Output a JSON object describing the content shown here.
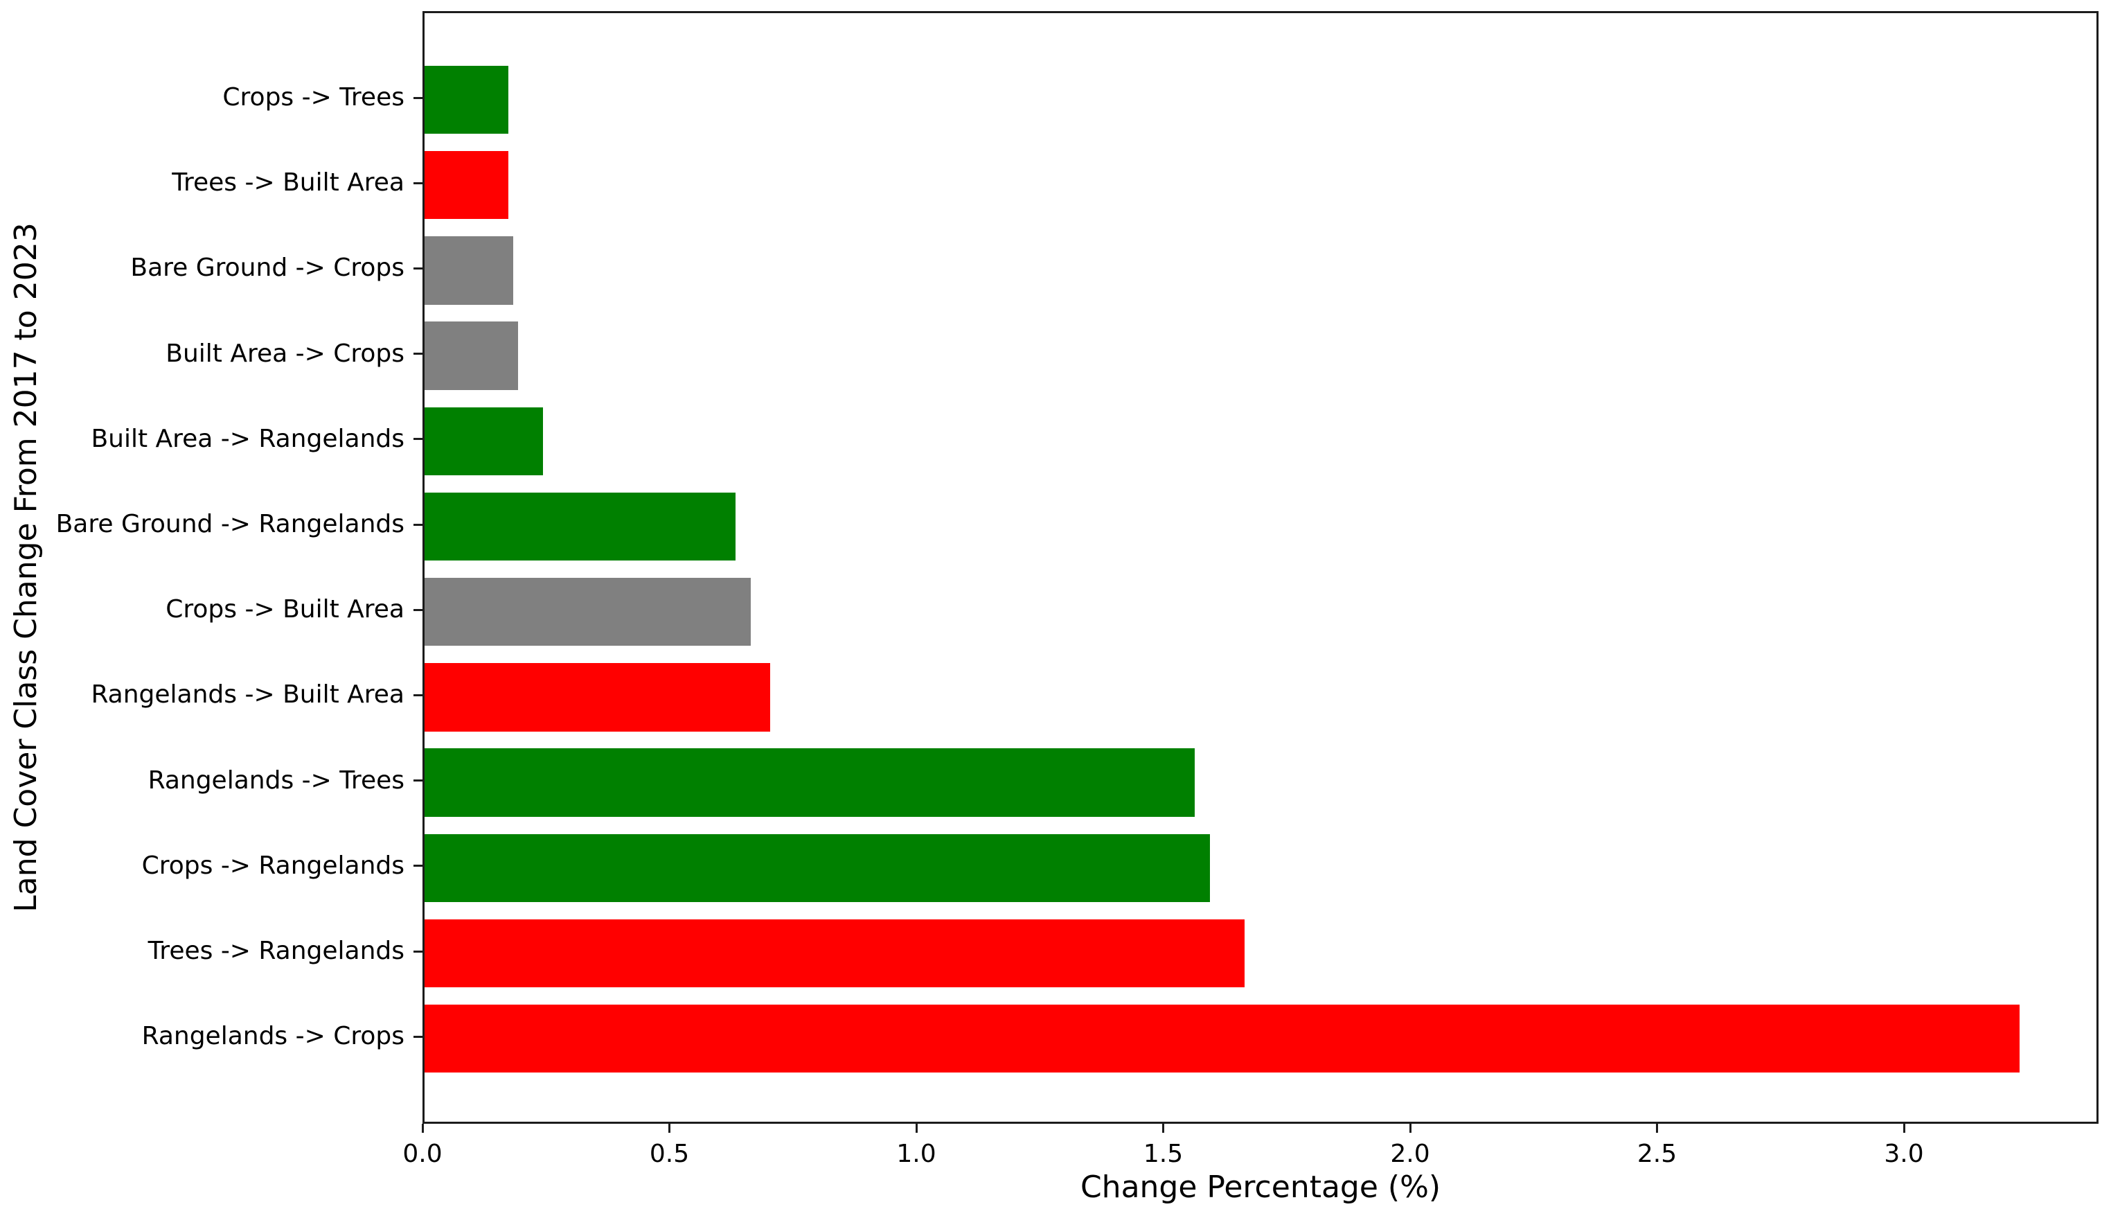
{
  "chart_data": {
    "type": "bar",
    "orientation": "horizontal",
    "title": "",
    "xlabel": "Change Percentage (%)",
    "ylabel": "Land Cover Class Change From 2017 to 2023",
    "categories": [
      "Crops -> Trees",
      "Trees -> Built Area",
      "Bare Ground -> Crops",
      "Built Area -> Crops",
      "Built Area -> Rangelands",
      "Bare Ground -> Rangelands",
      "Crops -> Built Area",
      "Rangelands -> Built Area",
      "Rangelands -> Trees",
      "Crops -> Rangelands",
      "Trees -> Rangelands",
      "Rangelands -> Crops"
    ],
    "values": [
      0.17,
      0.17,
      0.18,
      0.19,
      0.24,
      0.63,
      0.66,
      0.7,
      1.56,
      1.59,
      1.66,
      3.23
    ],
    "bar_colors": [
      "#008000",
      "#ff0000",
      "#808080",
      "#808080",
      "#008000",
      "#008000",
      "#808080",
      "#ff0000",
      "#008000",
      "#008000",
      "#ff0000",
      "#ff0000"
    ],
    "x_ticks": [
      0.0,
      0.5,
      1.0,
      1.5,
      2.0,
      2.5,
      3.0
    ],
    "x_tick_labels": [
      "0.0",
      "0.5",
      "1.0",
      "1.5",
      "2.0",
      "2.5",
      "3.0"
    ],
    "xlim": [
      0,
      3.4
    ],
    "grid": false,
    "legend": "none",
    "background_color": "#ffffff",
    "text_color": "#000000"
  }
}
